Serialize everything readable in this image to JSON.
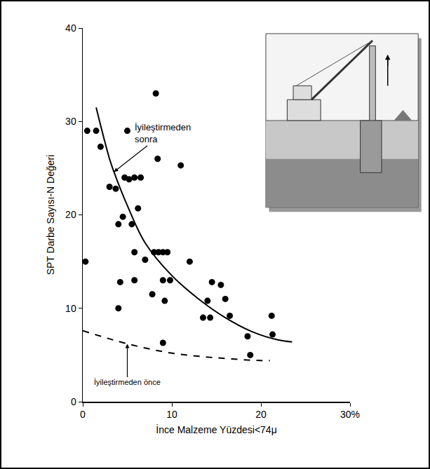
{
  "chart_data": {
    "type": "scatter",
    "x_label": "İnce Malzeme Yüzdesi<74μ",
    "y_label": "SPT Darbe Sayısı-N Değeri",
    "xlim": [
      0,
      30
    ],
    "xticks": [
      0,
      10,
      20,
      {
        "value": 30,
        "label": "30%"
      }
    ],
    "ylim": [
      0,
      40
    ],
    "yticks": [
      0,
      10,
      20,
      30,
      40
    ],
    "grid": false,
    "series": [
      {
        "type": "scatter",
        "marker": "circle",
        "color": "#000000",
        "x": [
          0.3,
          0.5,
          1.5,
          2,
          3,
          3.7,
          4,
          4.2,
          4,
          4.5,
          4.7,
          5,
          5.2,
          5.5,
          5.8,
          5.8,
          5.8,
          6.2,
          6.5,
          7,
          8,
          7.8,
          8.2,
          8.4,
          8.5,
          9,
          9,
          9.2,
          9,
          9.5,
          9.8,
          11,
          12,
          13.5,
          14,
          14.3,
          14.5,
          15.5,
          16,
          16.5,
          18.5,
          18.8,
          21.2,
          21.3
        ],
        "values": [
          15,
          29,
          29,
          27.3,
          23,
          22.8,
          19,
          12.8,
          10,
          19.8,
          24,
          29,
          23.8,
          19,
          24,
          16,
          13,
          20.7,
          24,
          15.2,
          16,
          11.5,
          33,
          26,
          16,
          13,
          16,
          10.8,
          6.3,
          16,
          13,
          25.3,
          15,
          9,
          10.8,
          9,
          12.8,
          12.5,
          11,
          9.2,
          7,
          5,
          9.2,
          7.2
        ]
      },
      {
        "name": "İyileştirmeden sonra",
        "type": "line",
        "line_style": "solid",
        "color": "#000000",
        "x": [
          1.5,
          3,
          3.5,
          5,
          7,
          10,
          13,
          16,
          19,
          22,
          23.5
        ],
        "values": [
          31.5,
          26,
          24.6,
          21,
          17,
          13.5,
          11,
          9,
          7.5,
          6.6,
          6.4
        ]
      },
      {
        "name": "İyileştirmeden önce",
        "type": "line",
        "line_style": "dash",
        "color": "#000000",
        "x": [
          0,
          5,
          10,
          15,
          20,
          21
        ],
        "values": [
          7.6,
          6.2,
          5.2,
          4.7,
          4.4,
          4.4
        ]
      }
    ]
  }
}
